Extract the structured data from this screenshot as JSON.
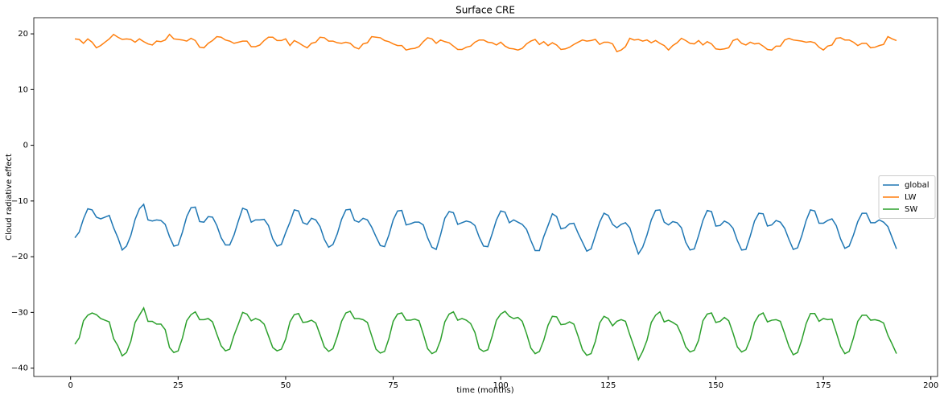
{
  "chart_data": {
    "type": "line",
    "title": "Surface CRE",
    "xlabel": "time (months)",
    "ylabel": "Cloud radiative effect",
    "x": [
      1,
      2,
      3,
      4,
      5,
      6,
      7,
      8,
      9,
      10,
      11,
      12,
      13,
      14,
      15,
      16,
      17,
      18,
      19,
      20,
      21,
      22,
      23,
      24,
      25,
      26,
      27,
      28,
      29,
      30,
      31,
      32,
      33,
      34,
      35,
      36,
      37,
      38,
      39,
      40,
      41,
      42,
      43,
      44,
      45,
      46,
      47,
      48,
      49,
      50,
      51,
      52,
      53,
      54,
      55,
      56,
      57,
      58,
      59,
      60,
      61,
      62,
      63,
      64,
      65,
      66,
      67,
      68,
      69,
      70,
      71,
      72,
      73,
      74,
      75,
      76,
      77,
      78,
      79,
      80,
      81,
      82,
      83,
      84,
      85,
      86,
      87,
      88,
      89,
      90,
      91,
      92,
      93,
      94,
      95,
      96,
      97,
      98,
      99,
      100,
      101,
      102,
      103,
      104,
      105,
      106,
      107,
      108,
      109,
      110,
      111,
      112,
      113,
      114,
      115,
      116,
      117,
      118,
      119,
      120,
      121,
      122,
      123,
      124,
      125,
      126,
      127,
      128,
      129,
      130,
      131,
      132,
      133,
      134,
      135,
      136,
      137,
      138,
      139,
      140,
      141,
      142,
      143,
      144,
      145,
      146,
      147,
      148,
      149,
      150,
      151,
      152,
      153,
      154,
      155,
      156,
      157,
      158,
      159,
      160,
      161,
      162,
      163,
      164,
      165,
      166,
      167,
      168,
      169,
      170,
      171,
      172,
      173,
      174,
      175,
      176,
      177,
      178,
      179,
      180,
      181,
      182,
      183,
      184,
      185,
      186,
      187,
      188,
      189,
      190,
      191,
      192
    ],
    "series": [
      {
        "name": "global",
        "color": "#1f77b4",
        "values": [
          -16.6,
          -15.6,
          -13.2,
          -11.4,
          -11.6,
          -12.9,
          -13.2,
          -12.9,
          -12.6,
          -14.8,
          -16.6,
          -18.8,
          -18.1,
          -16.2,
          -13.3,
          -11.4,
          -10.6,
          -13.4,
          -13.6,
          -13.4,
          -13.5,
          -14.2,
          -16.4,
          -18.1,
          -17.9,
          -15.6,
          -12.8,
          -11.2,
          -11.1,
          -13.7,
          -13.8,
          -12.8,
          -12.9,
          -14.4,
          -16.6,
          -17.9,
          -17.9,
          -16.1,
          -13.6,
          -11.3,
          -11.6,
          -13.8,
          -13.4,
          -13.4,
          -13.3,
          -14.4,
          -16.8,
          -18.1,
          -17.8,
          -15.7,
          -13.8,
          -11.6,
          -11.8,
          -13.9,
          -14.2,
          -13.1,
          -13.4,
          -14.6,
          -16.9,
          -18.3,
          -17.8,
          -15.9,
          -13.3,
          -11.6,
          -11.5,
          -13.5,
          -13.8,
          -13.1,
          -13.4,
          -14.7,
          -16.4,
          -18.0,
          -18.2,
          -16.1,
          -13.4,
          -11.8,
          -11.7,
          -14.3,
          -14.1,
          -13.8,
          -13.8,
          -14.3,
          -16.6,
          -18.3,
          -18.7,
          -16.1,
          -13.1,
          -11.9,
          -12.1,
          -14.2,
          -13.9,
          -13.6,
          -13.8,
          -14.4,
          -16.5,
          -18.1,
          -18.2,
          -15.9,
          -13.4,
          -11.8,
          -12.0,
          -13.9,
          -13.4,
          -13.8,
          -14.2,
          -15.1,
          -17.1,
          -18.9,
          -18.9,
          -16.4,
          -14.4,
          -12.3,
          -12.8,
          -15.0,
          -14.8,
          -14.1,
          -14.0,
          -15.8,
          -17.4,
          -19.0,
          -18.6,
          -16.2,
          -13.8,
          -12.2,
          -12.6,
          -14.2,
          -14.8,
          -14.2,
          -13.9,
          -14.8,
          -17.3,
          -19.5,
          -18.3,
          -16.1,
          -13.4,
          -11.7,
          -11.6,
          -13.8,
          -14.3,
          -13.7,
          -13.9,
          -14.8,
          -17.4,
          -18.8,
          -18.6,
          -16.2,
          -13.5,
          -11.7,
          -11.9,
          -14.5,
          -14.4,
          -13.6,
          -14.0,
          -14.9,
          -17.1,
          -18.8,
          -18.7,
          -16.3,
          -13.6,
          -12.2,
          -12.3,
          -14.5,
          -14.3,
          -13.5,
          -13.8,
          -14.9,
          -16.9,
          -18.7,
          -18.4,
          -16.2,
          -13.5,
          -11.6,
          -11.8,
          -14.0,
          -14.0,
          -13.5,
          -13.2,
          -14.4,
          -16.8,
          -18.5,
          -18.1,
          -16.1,
          -13.7,
          -12.2,
          -12.2,
          -13.9,
          -13.9,
          -13.4,
          -13.8,
          -14.6,
          -16.6,
          -18.6
        ]
      },
      {
        "name": "LW",
        "color": "#ff7f0e",
        "values": [
          19.1,
          19.0,
          18.3,
          19.1,
          18.5,
          17.5,
          17.9,
          18.5,
          19.1,
          19.9,
          19.4,
          19.0,
          19.1,
          19.0,
          18.5,
          19.1,
          18.6,
          18.2,
          18.0,
          18.7,
          18.6,
          18.9,
          19.9,
          19.1,
          19.0,
          18.9,
          18.7,
          19.2,
          18.8,
          17.6,
          17.5,
          18.3,
          18.8,
          19.5,
          19.4,
          18.9,
          18.7,
          18.3,
          18.5,
          18.7,
          18.7,
          17.7,
          17.7,
          18.0,
          18.8,
          19.4,
          19.4,
          18.8,
          18.8,
          19.1,
          17.9,
          18.8,
          18.4,
          17.9,
          17.5,
          18.3,
          18.5,
          19.4,
          19.3,
          18.7,
          18.7,
          18.4,
          18.3,
          18.5,
          18.3,
          17.6,
          17.3,
          18.2,
          18.4,
          19.5,
          19.4,
          19.3,
          18.8,
          18.6,
          18.2,
          17.9,
          17.9,
          17.1,
          17.3,
          17.4,
          17.7,
          18.6,
          19.3,
          19.1,
          18.3,
          18.9,
          18.6,
          18.4,
          17.8,
          17.2,
          17.2,
          17.6,
          17.8,
          18.5,
          18.9,
          18.9,
          18.5,
          18.4,
          18.0,
          18.5,
          17.8,
          17.4,
          17.3,
          17.1,
          17.4,
          18.2,
          18.7,
          19.0,
          18.1,
          18.6,
          17.9,
          18.4,
          18.0,
          17.2,
          17.3,
          17.6,
          18.1,
          18.5,
          18.9,
          18.7,
          18.8,
          19.0,
          18.1,
          18.5,
          18.5,
          18.2,
          16.8,
          17.1,
          17.7,
          19.2,
          18.9,
          19.0,
          18.7,
          18.9,
          18.4,
          18.8,
          18.3,
          17.9,
          17.1,
          17.9,
          18.4,
          19.2,
          18.8,
          18.3,
          18.2,
          18.8,
          18.0,
          18.6,
          18.2,
          17.3,
          17.2,
          17.3,
          17.5,
          18.8,
          19.1,
          18.3,
          18.0,
          18.5,
          18.2,
          18.3,
          17.8,
          17.2,
          17.1,
          17.8,
          17.8,
          18.9,
          19.2,
          18.9,
          18.8,
          18.7,
          18.5,
          18.6,
          18.4,
          17.6,
          17.1,
          17.8,
          18.0,
          19.2,
          19.3,
          18.9,
          18.9,
          18.5,
          17.9,
          18.3,
          18.3,
          17.5,
          17.6,
          17.9,
          18.1,
          19.5,
          19.1,
          18.8
        ]
      },
      {
        "name": "SW",
        "color": "#2ca02c",
        "values": [
          -35.7,
          -34.6,
          -31.5,
          -30.5,
          -30.1,
          -30.4,
          -31.1,
          -31.4,
          -31.7,
          -34.7,
          -36.0,
          -37.8,
          -37.2,
          -35.2,
          -31.8,
          -30.5,
          -29.2,
          -31.6,
          -31.6,
          -32.1,
          -32.1,
          -33.1,
          -36.3,
          -37.2,
          -36.9,
          -34.6,
          -31.5,
          -30.4,
          -29.9,
          -31.3,
          -31.3,
          -31.1,
          -31.7,
          -33.9,
          -36.0,
          -36.9,
          -36.6,
          -34.1,
          -32.1,
          -30.0,
          -30.3,
          -31.5,
          -31.1,
          -31.4,
          -32.1,
          -34.2,
          -36.3,
          -36.9,
          -36.6,
          -34.8,
          -31.7,
          -30.4,
          -30.2,
          -31.8,
          -31.7,
          -31.4,
          -31.9,
          -34.0,
          -36.2,
          -37.0,
          -36.5,
          -34.3,
          -31.6,
          -30.1,
          -29.8,
          -31.1,
          -31.1,
          -31.3,
          -31.8,
          -34.2,
          -36.6,
          -37.3,
          -37.0,
          -34.7,
          -31.6,
          -30.3,
          -30.1,
          -31.4,
          -31.4,
          -31.2,
          -31.5,
          -33.9,
          -36.5,
          -37.4,
          -37.0,
          -35.0,
          -31.7,
          -30.3,
          -29.9,
          -31.4,
          -31.1,
          -31.4,
          -32.0,
          -33.6,
          -36.5,
          -37.0,
          -36.7,
          -34.3,
          -31.4,
          -30.3,
          -29.8,
          -30.7,
          -31.1,
          -30.9,
          -31.6,
          -33.8,
          -36.4,
          -37.4,
          -37.0,
          -35.0,
          -32.3,
          -30.7,
          -30.8,
          -32.2,
          -32.1,
          -31.7,
          -32.1,
          -34.3,
          -36.7,
          -37.7,
          -37.4,
          -35.2,
          -31.9,
          -30.7,
          -31.1,
          -32.4,
          -31.6,
          -31.3,
          -31.6,
          -34.0,
          -36.2,
          -38.5,
          -37.0,
          -35.0,
          -31.8,
          -30.5,
          -29.9,
          -31.7,
          -31.4,
          -31.8,
          -32.3,
          -34.0,
          -36.2,
          -37.1,
          -36.8,
          -35.0,
          -31.5,
          -30.3,
          -30.1,
          -31.8,
          -31.6,
          -30.9,
          -31.5,
          -33.7,
          -36.2,
          -37.1,
          -36.7,
          -34.8,
          -31.8,
          -30.5,
          -30.1,
          -31.7,
          -31.4,
          -31.3,
          -31.6,
          -33.8,
          -36.1,
          -37.6,
          -37.2,
          -34.9,
          -32.0,
          -30.2,
          -30.2,
          -31.6,
          -31.1,
          -31.3,
          -31.2,
          -33.6,
          -36.1,
          -37.4,
          -37.0,
          -34.6,
          -31.6,
          -30.5,
          -30.5,
          -31.4,
          -31.3,
          -31.5,
          -31.9,
          -34.1,
          -35.7,
          -37.4
        ]
      }
    ],
    "xlim": [
      -8.55,
      201.55
    ],
    "ylim": [
      -41.5,
      22.9
    ],
    "xticks": [
      0,
      25,
      50,
      75,
      100,
      125,
      150,
      175,
      200
    ],
    "yticks": [
      {
        "value": -40,
        "label": "−40"
      },
      {
        "value": -30,
        "label": "−30"
      },
      {
        "value": -20,
        "label": "−20"
      },
      {
        "value": -10,
        "label": "−10"
      },
      0,
      10,
      20
    ],
    "legend": "center right",
    "grid": false
  }
}
